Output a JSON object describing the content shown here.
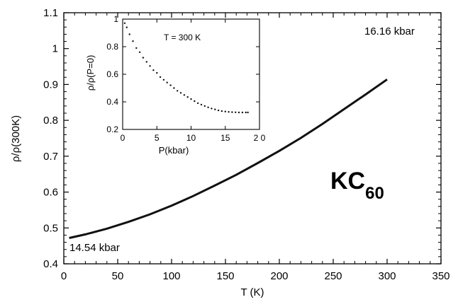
{
  "chart_data": [
    {
      "type": "line",
      "xlabel": "T (K)",
      "ylabel": "ρ/ρ(300K)",
      "xlim": [
        0,
        350
      ],
      "ylim": [
        0.4,
        1.1
      ],
      "x_ticks": [
        "0",
        "50",
        "100",
        "150",
        "200",
        "250",
        "300",
        "350"
      ],
      "y_ticks": [
        "0.4",
        "0.5",
        "0.6",
        "0.7",
        "0.8",
        "0.9",
        "1",
        "1.1"
      ],
      "grid": false,
      "series": [
        {
          "x": [
            5,
            20,
            40,
            60,
            80,
            100,
            120,
            140,
            160,
            180,
            200,
            220,
            240,
            260,
            280,
            300
          ],
          "values": [
            0.472,
            0.482,
            0.498,
            0.517,
            0.538,
            0.562,
            0.589,
            0.618,
            0.648,
            0.681,
            0.715,
            0.751,
            0.79,
            0.831,
            0.872,
            0.914
          ]
        }
      ],
      "annotations": [
        {
          "text": "16.16 kbar",
          "x": 300,
          "y": 1.0
        },
        {
          "text": "14.54 kbar",
          "x": 5,
          "y": 0.47
        }
      ],
      "material_label": {
        "main": "KC",
        "subscript": "60"
      }
    },
    {
      "type": "scatter",
      "xlabel": "P(kbar)",
      "ylabel": "ρ/ρ(P=0)",
      "xlim": [
        0,
        20
      ],
      "ylim": [
        0.2,
        1.0
      ],
      "x_ticks": [
        "0",
        "5",
        "10",
        "15",
        "2 0"
      ],
      "y_ticks": [
        "0.2",
        "0.4",
        "0.6",
        "0.8",
        "1"
      ],
      "grid": false,
      "annotation": "T = 300 K",
      "series": [
        {
          "x": [
            0.3,
            0.6,
            1,
            1.5,
            2,
            2.5,
            3,
            3.5,
            4,
            4.5,
            5,
            5.5,
            6,
            6.5,
            7,
            7.5,
            8,
            8.5,
            9,
            9.5,
            10,
            10.5,
            11,
            11.5,
            12,
            12.5,
            13,
            13.5,
            14,
            14.5,
            15,
            15.5,
            16,
            16.5,
            17,
            17.5,
            18,
            18.3
          ],
          "values": [
            0.97,
            0.94,
            0.89,
            0.84,
            0.79,
            0.76,
            0.72,
            0.69,
            0.66,
            0.63,
            0.61,
            0.58,
            0.56,
            0.54,
            0.52,
            0.5,
            0.48,
            0.465,
            0.45,
            0.435,
            0.42,
            0.405,
            0.39,
            0.38,
            0.37,
            0.36,
            0.352,
            0.345,
            0.338,
            0.333,
            0.33,
            0.327,
            0.325,
            0.324,
            0.323,
            0.323,
            0.323,
            0.323
          ]
        }
      ]
    }
  ]
}
